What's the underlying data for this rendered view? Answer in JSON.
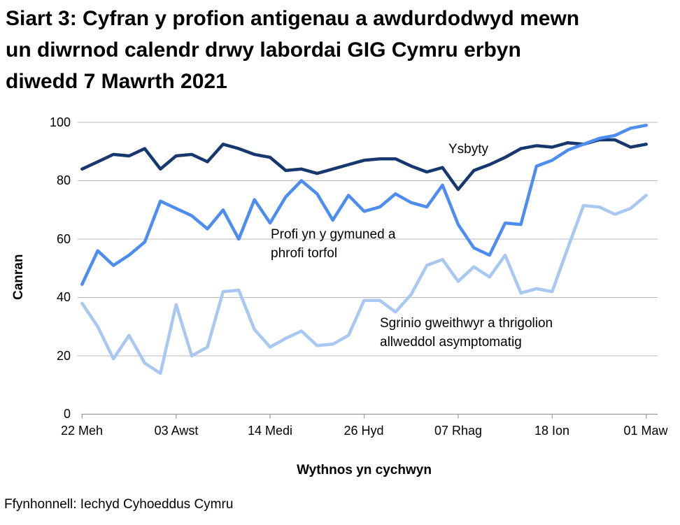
{
  "title": {
    "lines": [
      "Siart 3: Cyfran y profion antigenau a awdurdodwyd mewn",
      "un diwrnod calendr drwy labordai GIG Cymru erbyn",
      "diwedd 7 Mawrth 2021"
    ]
  },
  "axes": {
    "ylabel": "Canran",
    "xlabel": "Wythnos yn cychwyn",
    "yticks": [
      "100",
      "80",
      "60",
      "40",
      "20",
      "0"
    ],
    "xticks": [
      "22 Meh",
      "03 Awst",
      "14 Medi",
      "26 Hyd",
      "07 Rhag",
      "18 Ion",
      "01 Maw"
    ]
  },
  "annotations": {
    "ysbyty": "Ysbyty",
    "profi_line1": "Profi yn y gymuned a",
    "profi_line2": "phrofi torfol",
    "sgrinio_line1": "Sgrinio gweithwyr a thrigolion",
    "sgrinio_line2": "allweddol asymptomatig"
  },
  "footer": {
    "source": "Ffynhonnell: Iechyd Cyhoeddus Cymru"
  },
  "colors": {
    "ysbyty": "#17386f",
    "profi": "#4d8df0",
    "sgrinio": "#a8c8f2",
    "gridline": "#bababa",
    "axisline": "#9a9a9a"
  },
  "chart_data": {
    "type": "line",
    "title": "Siart 3: Cyfran y profion antigenau a awdurdodwyd mewn un diwrnod calendr drwy labordai GIG Cymru erbyn diwedd 7 Mawrth 2021",
    "xlabel": "Wythnos yn cychwyn",
    "ylabel": "Canran",
    "ylim": [
      0,
      100
    ],
    "yticks": [
      0,
      20,
      40,
      60,
      80,
      100
    ],
    "grid": "horizontal",
    "legend_position": "inline-annotations",
    "n_points": 37,
    "x_tick_labels": [
      "22 Meh",
      "03 Awst",
      "14 Medi",
      "26 Hyd",
      "07 Rhag",
      "18 Ion",
      "01 Maw"
    ],
    "x_tick_indices": [
      0,
      6,
      12,
      18,
      24,
      30,
      36
    ],
    "series": [
      {
        "name": "Ysbyty",
        "color": "#17386f",
        "values": [
          84,
          86.5,
          89,
          88.5,
          91,
          84,
          88.5,
          89,
          86.5,
          92.5,
          91,
          89,
          88,
          83.5,
          84,
          82.5,
          84,
          85.5,
          87,
          87.5,
          87.5,
          85,
          83,
          84.5,
          77,
          83.5,
          85.5,
          88,
          91,
          92,
          91.5,
          93,
          92.5,
          94,
          94,
          91.5,
          92.5
        ]
      },
      {
        "name": "Profi yn y gymuned a phrofi torfol",
        "color": "#4d8df0",
        "values": [
          44.5,
          56,
          51,
          54.5,
          59,
          73,
          70.5,
          68,
          63.5,
          70,
          60,
          73.5,
          65.5,
          74.5,
          80,
          75.5,
          66.5,
          75,
          69.5,
          71,
          75.5,
          72.5,
          71,
          78.5,
          65,
          57,
          54.5,
          65.5,
          65,
          85,
          87,
          90.5,
          92.5,
          94.5,
          95.5,
          98,
          99
        ]
      },
      {
        "name": "Sgrinio gweithwyr a thrigolion allweddol asymptomatig",
        "color": "#a8c8f2",
        "values": [
          38,
          30,
          19,
          27,
          17.5,
          14,
          37.5,
          20,
          23,
          42,
          42.5,
          29,
          23,
          26,
          28.5,
          23.5,
          24,
          27,
          39,
          39,
          35,
          41,
          51,
          53,
          45.5,
          50.5,
          47,
          54.5,
          41.5,
          43,
          42,
          57,
          71.5,
          71,
          68.5,
          70.5,
          75
        ]
      }
    ]
  }
}
